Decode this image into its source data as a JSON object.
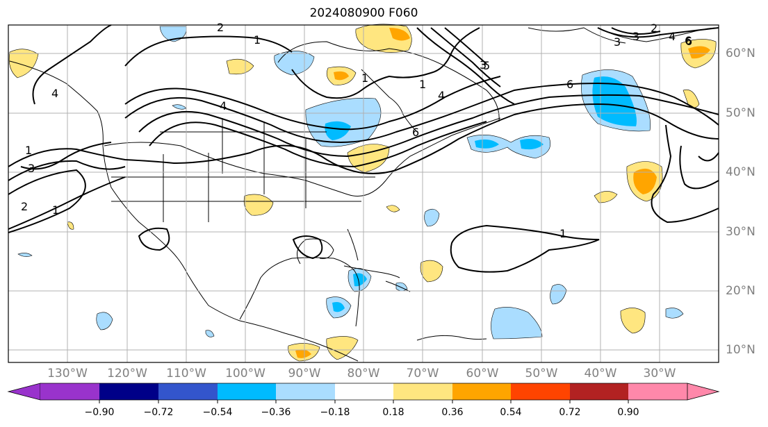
{
  "title": "2024080900 F060",
  "lon_labels": [
    "130°W",
    "120°W",
    "110°W",
    "100°W",
    "90°W",
    "80°W",
    "70°W",
    "60°W",
    "50°W",
    "40°W",
    "30°W"
  ],
  "lat_labels": [
    "60°N",
    "50°N",
    "40°N",
    "30°N",
    "20°N",
    "10°N"
  ],
  "colorbar": {
    "colors": [
      "#9933cc",
      "#000088",
      "#3355cc",
      "#00bbff",
      "#aaddff",
      "#ffffff",
      "#ffe680",
      "#ffa500",
      "#ff4400",
      "#b22222",
      "#ff88aa"
    ],
    "labels": [
      "−0.90",
      "−0.72",
      "−0.54",
      "−0.36",
      "−0.18",
      "0.18",
      "0.36",
      "0.54",
      "0.72",
      "0.90"
    ],
    "extend": "both"
  },
  "contour_labels": [
    "1",
    "2",
    "2",
    "3",
    "4",
    "4",
    "6",
    "1",
    "4",
    "1",
    "3",
    "6",
    "1",
    "3",
    "1",
    "2",
    "1",
    "6",
    "3",
    "5",
    "4",
    "6"
  ],
  "colors": {
    "land_line": "#000000",
    "grid": "#b0b0b0",
    "contour": "#000000"
  }
}
